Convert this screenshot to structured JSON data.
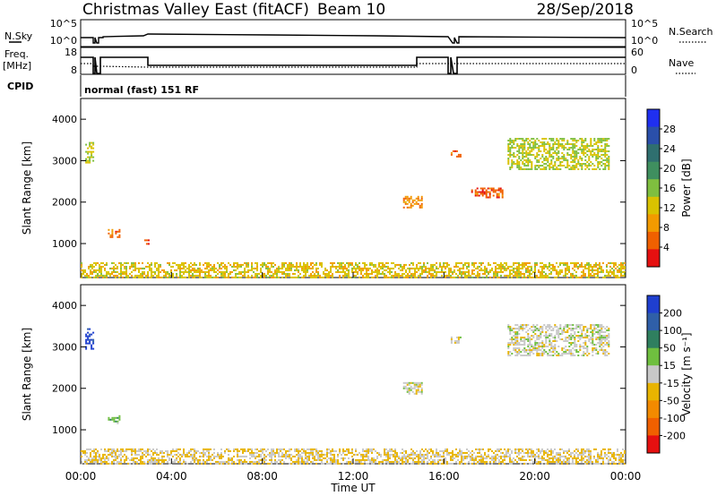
{
  "header": {
    "title": "Christmas Valley East (fitACF)",
    "beam": "Beam 10",
    "date": "28/Sep/2018"
  },
  "status_panels": {
    "nsky": {
      "label": "N.Sky",
      "ticks": [
        "10^5",
        "10^0"
      ]
    },
    "nsearch": {
      "label": "N.Search",
      "ticks": [
        "10^5",
        "10^0"
      ]
    },
    "freq": {
      "label_line1": "Freq.",
      "label_line2": "[MHz]",
      "ticks": [
        "18",
        "8"
      ]
    },
    "nave": {
      "label": "Nave",
      "ticks": [
        "60",
        "0"
      ]
    },
    "cpid": {
      "label": "CPID",
      "value": "normal (fast) 151 RF"
    }
  },
  "colors": {
    "power": [
      "#1f2ff0",
      "#2a4faa",
      "#2f6f6f",
      "#3f8f5f",
      "#7fbf3f",
      "#d9c200",
      "#f29a00",
      "#f06000",
      "#e51010"
    ],
    "velocity": [
      "#1f3fcf",
      "#2f5fa8",
      "#2f7f5f",
      "#6fbf3f",
      "#c8c8c8",
      "#e8b400",
      "#f28a00",
      "#f06000",
      "#e51010"
    ],
    "status_line": "#000000"
  },
  "chart_data": [
    {
      "type": "heatmap",
      "name": "power",
      "ylabel": "Slant Range [km]",
      "xlabel": "",
      "y_ticks": [
        "4000",
        "3000",
        "2000",
        "1000"
      ],
      "ylim": [
        180,
        4500
      ],
      "colorbar": {
        "label": "Power [dB]",
        "tick_labels": [
          "28",
          "24",
          "20",
          "16",
          "12",
          "8",
          "4"
        ],
        "range": [
          0,
          32
        ]
      },
      "echo_regions": [
        {
          "t0": 0.2,
          "t1": 0.55,
          "r0": 2950,
          "r1": 3450,
          "value": 14
        },
        {
          "t0": 1.2,
          "t1": 1.7,
          "r0": 1150,
          "r1": 1350,
          "value": 6
        },
        {
          "t0": 2.8,
          "t1": 3.0,
          "r0": 1000,
          "r1": 1100,
          "value": 4
        },
        {
          "t0": 14.2,
          "t1": 15.0,
          "r0": 1850,
          "r1": 2150,
          "value": 8
        },
        {
          "t0": 16.3,
          "t1": 16.7,
          "r0": 3100,
          "r1": 3250,
          "value": 6
        },
        {
          "t0": 17.2,
          "t1": 18.6,
          "r0": 2100,
          "r1": 2350,
          "value": 5
        },
        {
          "t0": 18.8,
          "t1": 23.3,
          "r0": 2800,
          "r1": 3550,
          "value": 14
        },
        {
          "t0": 0.0,
          "t1": 24.0,
          "r0": 200,
          "r1": 550,
          "value": 12
        }
      ]
    },
    {
      "type": "heatmap",
      "name": "velocity",
      "ylabel": "Slant Range [km]",
      "xlabel": "Time UT",
      "x_ticks": [
        "00:00",
        "04:00",
        "08:00",
        "12:00",
        "16:00",
        "20:00",
        "00:00"
      ],
      "y_ticks": [
        "4000",
        "3000",
        "2000",
        "1000"
      ],
      "ylim": [
        180,
        4500
      ],
      "colorbar": {
        "label": "Velocity [m s⁻¹]",
        "tick_labels": [
          "200",
          "100",
          "50",
          "15",
          "-15",
          "-50",
          "-100",
          "-200"
        ],
        "range": [
          -250,
          250
        ]
      },
      "echo_regions": [
        {
          "t0": 0.2,
          "t1": 0.55,
          "r0": 2950,
          "r1": 3450,
          "value": 220
        },
        {
          "t0": 1.2,
          "t1": 1.7,
          "r0": 1150,
          "r1": 1350,
          "value": 60
        },
        {
          "t0": 14.2,
          "t1": 15.0,
          "r0": 1850,
          "r1": 2150,
          "value": 0
        },
        {
          "t0": 16.3,
          "t1": 16.7,
          "r0": 3100,
          "r1": 3250,
          "value": 0
        },
        {
          "t0": 18.8,
          "t1": 23.3,
          "r0": 2800,
          "r1": 3550,
          "value": 0
        },
        {
          "t0": 0.0,
          "t1": 24.0,
          "r0": 200,
          "r1": 550,
          "value": -30
        }
      ]
    }
  ]
}
